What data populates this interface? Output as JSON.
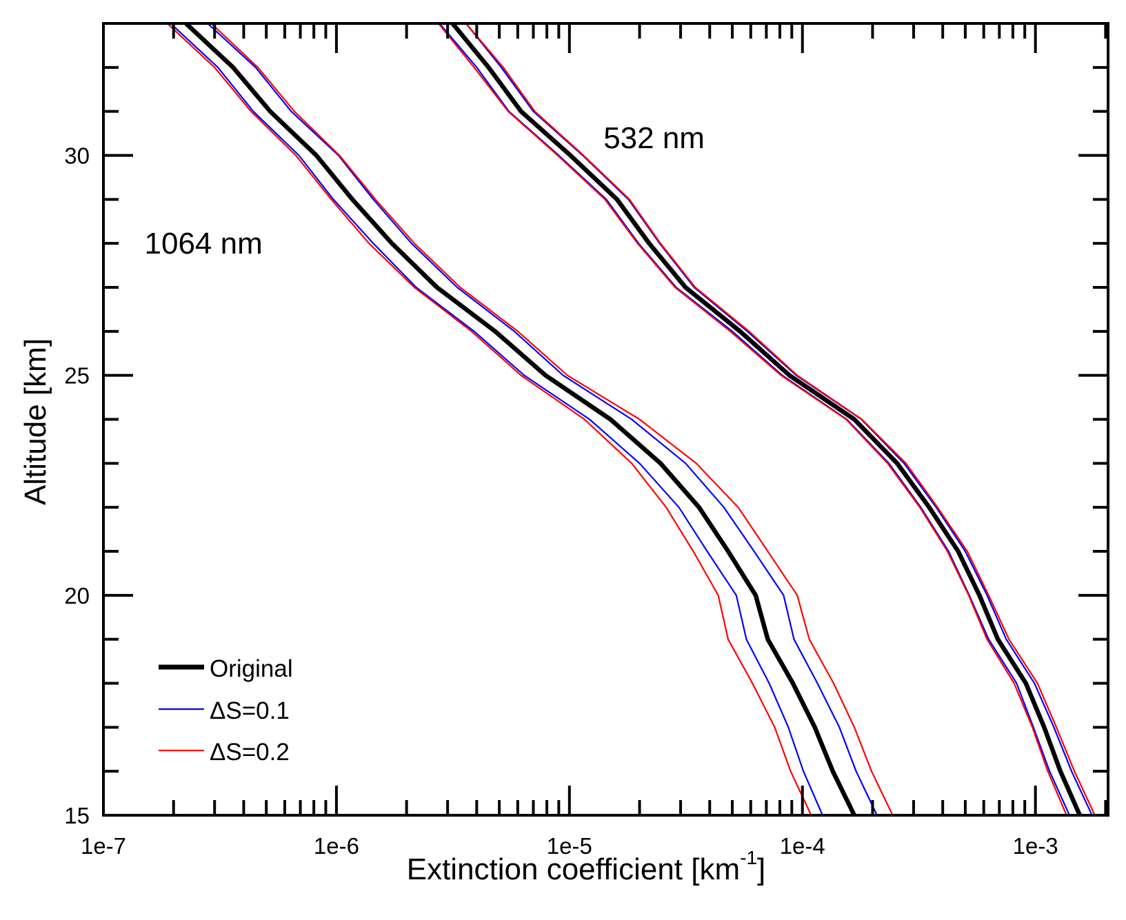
{
  "chart_data": {
    "type": "line",
    "title": "",
    "xlabel": "Extinction coefficient  [km",
    "xlabel_superscript": "-1",
    "xlabel_suffix": "]",
    "ylabel": "Altitude [km]",
    "xscale": "log",
    "xlim": [
      1e-07,
      0.00205
    ],
    "ylim": [
      15,
      33
    ],
    "grid": false,
    "legend_placement": "bottom-left",
    "x_ticks": [
      1e-07,
      1e-06,
      1e-05,
      0.0001,
      0.001
    ],
    "x_tick_labels": [
      "1e-7",
      "1e-6",
      "1e-5",
      "1e-4",
      "1e-3"
    ],
    "y_ticks": [
      15,
      20,
      25,
      30
    ],
    "y_tick_labels": [
      "15",
      "20",
      "25",
      "30"
    ],
    "legend": [
      {
        "label": "Original",
        "color": "#000000"
      },
      {
        "label": "ΔS=0.1",
        "color": "#0000ff"
      },
      {
        "label": "ΔS=0.2",
        "color": "#ff0000"
      }
    ],
    "annotations": [
      {
        "text": "532 nm",
        "x": 1.4e-05,
        "y": 30.4
      },
      {
        "text": "1064 nm",
        "x": 1.5e-07,
        "y": 28.0
      }
    ],
    "altitude": [
      15,
      16,
      17,
      18,
      19,
      20,
      21,
      22,
      23,
      24,
      25,
      26,
      27,
      28,
      29,
      30,
      31,
      32,
      33
    ],
    "series": [
      {
        "group": "1064 nm",
        "legend": "Original",
        "color": "#000000",
        "values": [
          0.000167,
          0.000135,
          0.000113,
          9.1e-05,
          7.1e-05,
          6.3e-05,
          4.8e-05,
          3.6e-05,
          2.46e-05,
          1.5e-05,
          7.9e-06,
          4.8e-06,
          2.7e-06,
          1.73e-06,
          1.17e-06,
          8.2e-07,
          5.2e-07,
          3.6e-07,
          2.26e-07
        ]
      },
      {
        "group": "1064 nm",
        "legend": "ΔS=0.1",
        "color": "#0000ff",
        "values": [
          0.000122,
          0.000101,
          8.7e-05,
          7.2e-05,
          5.75e-05,
          5.2e-05,
          3.9e-05,
          2.95e-05,
          2e-05,
          1.22e-05,
          6.4e-06,
          3.9e-06,
          2.2e-06,
          1.44e-06,
          9.7e-07,
          6.9e-07,
          4.4e-07,
          3.1e-07,
          1.94e-07
        ]
      },
      {
        "group": "1064 nm",
        "legend": "ΔS=0.1",
        "color": "#0000ff",
        "values": [
          0.000209,
          0.00017,
          0.000144,
          0.000116,
          9.2e-05,
          8.3e-05,
          6.2e-05,
          4.6e-05,
          3.15e-05,
          1.85e-05,
          9.4e-06,
          5.8e-06,
          3.3e-06,
          2.1e-06,
          1.44e-06,
          1.02e-06,
          6.4e-07,
          4.5e-07,
          2.8e-07
        ]
      },
      {
        "group": "1064 nm",
        "legend": "ΔS=0.2",
        "color": "#ff0000",
        "values": [
          0.000109,
          8.9e-05,
          7.6e-05,
          6.1e-05,
          4.8e-05,
          4.35e-05,
          3.4e-05,
          2.6e-05,
          1.85e-05,
          1.16e-05,
          6.2e-06,
          3.8e-06,
          2.16e-06,
          1.38e-06,
          9.5e-07,
          6.7e-07,
          4.3e-07,
          3e-07,
          1.88e-07
        ]
      },
      {
        "group": "1064 nm",
        "legend": "ΔS=0.2",
        "color": "#ff0000",
        "values": [
          0.000244,
          0.000198,
          0.000167,
          0.000136,
          0.000107,
          9.5e-05,
          7.1e-05,
          5.3e-05,
          3.5e-05,
          2e-05,
          9.8e-06,
          6e-06,
          3.4e-06,
          2.16e-06,
          1.47e-06,
          1.03e-06,
          6.6e-07,
          4.6e-07,
          2.9e-07
        ]
      },
      {
        "group": "532 nm",
        "legend": "Original",
        "color": "#000000",
        "values": [
          0.00155,
          0.00128,
          0.00109,
          0.00091,
          0.00069,
          0.000575,
          0.000466,
          0.00035,
          0.000255,
          0.000167,
          8.8e-05,
          5.4e-05,
          3.15e-05,
          2.2e-05,
          1.6e-05,
          1.01e-05,
          6.2e-06,
          4.5e-06,
          3.15e-06
        ]
      },
      {
        "group": "532 nm",
        "legend": "ΔS=0.1",
        "color": "#0000ff",
        "values": [
          0.0014,
          0.00115,
          0.00098,
          0.00083,
          0.00063,
          0.00052,
          0.000424,
          0.000322,
          0.000235,
          0.000155,
          8.2e-05,
          5e-05,
          2.87e-05,
          1.98e-05,
          1.44e-05,
          9e-06,
          5.5e-06,
          4e-06,
          2.77e-06
        ]
      },
      {
        "group": "532 nm",
        "legend": "ΔS=0.1",
        "color": "#0000ff",
        "values": [
          0.00175,
          0.00143,
          0.0012,
          0.00099,
          0.00075,
          0.00062,
          0.0005,
          0.000375,
          0.000273,
          0.000179,
          9.4e-05,
          5.8e-05,
          3.43e-05,
          2.44e-05,
          1.79e-05,
          1.14e-05,
          7e-06,
          5.1e-06,
          3.6e-06
        ]
      },
      {
        "group": "532 nm",
        "legend": "ΔS=0.2",
        "color": "#ff0000",
        "values": [
          0.00136,
          0.00113,
          0.00097,
          0.00081,
          0.00062,
          0.000517,
          0.000419,
          0.000319,
          0.000232,
          0.000154,
          8.1e-05,
          4.9e-05,
          2.84e-05,
          1.96e-05,
          1.42e-05,
          8.9e-06,
          5.46e-06,
          3.9e-06,
          2.74e-06
        ]
      },
      {
        "group": "532 nm",
        "legend": "ΔS=0.2",
        "color": "#ff0000",
        "values": [
          0.0018,
          0.00147,
          0.00123,
          0.00102,
          0.00077,
          0.00063,
          0.00051,
          0.00038,
          0.000278,
          0.00018,
          9.5e-05,
          5.9e-05,
          3.47e-05,
          2.46e-05,
          1.81e-05,
          1.15e-05,
          7.1e-06,
          5.2e-06,
          3.6e-06
        ]
      }
    ]
  }
}
